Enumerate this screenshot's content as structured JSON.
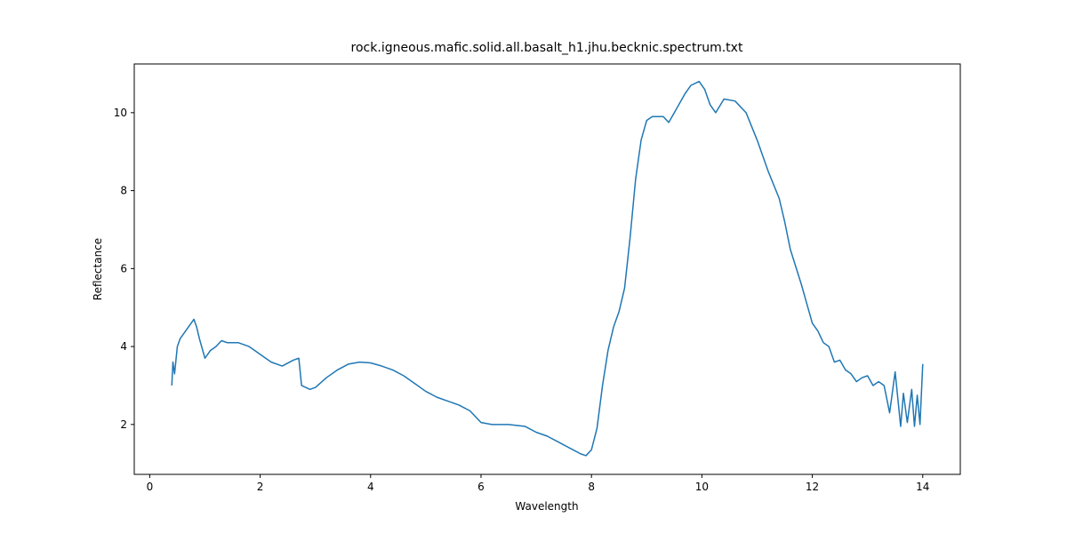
{
  "chart_data": {
    "type": "line",
    "title": "rock.igneous.mafic.solid.all.basalt_h1.jhu.becknic.spectrum.txt",
    "x_label": "Wavelength",
    "y_label": "Reflectance",
    "x": [
      0.4,
      0.42,
      0.45,
      0.5,
      0.55,
      0.6,
      0.7,
      0.75,
      0.8,
      0.85,
      0.9,
      1.0,
      1.1,
      1.2,
      1.3,
      1.4,
      1.6,
      1.8,
      2.0,
      2.2,
      2.4,
      2.6,
      2.7,
      2.75,
      2.9,
      3.0,
      3.2,
      3.4,
      3.6,
      3.8,
      4.0,
      4.2,
      4.4,
      4.6,
      4.8,
      5.0,
      5.2,
      5.4,
      5.6,
      5.8,
      6.0,
      6.2,
      6.5,
      6.8,
      7.0,
      7.2,
      7.4,
      7.6,
      7.8,
      7.9,
      8.0,
      8.1,
      8.2,
      8.3,
      8.4,
      8.5,
      8.6,
      8.7,
      8.8,
      8.9,
      9.0,
      9.1,
      9.3,
      9.4,
      9.5,
      9.6,
      9.7,
      9.8,
      9.95,
      10.05,
      10.15,
      10.25,
      10.4,
      10.6,
      10.8,
      11.0,
      11.2,
      11.4,
      11.5,
      11.6,
      11.8,
      11.9,
      12.0,
      12.1,
      12.2,
      12.3,
      12.4,
      12.5,
      12.6,
      12.7,
      12.8,
      12.9,
      13.0,
      13.1,
      13.2,
      13.3,
      13.4,
      13.5,
      13.6,
      13.65,
      13.72,
      13.8,
      13.85,
      13.9,
      13.95,
      14.0
    ],
    "series": [
      {
        "color": "#1f77b4",
        "values": [
          3.0,
          3.6,
          3.3,
          4.0,
          4.2,
          4.3,
          4.5,
          4.6,
          4.7,
          4.5,
          4.2,
          3.7,
          3.9,
          4.0,
          4.15,
          4.1,
          4.1,
          4.0,
          3.8,
          3.6,
          3.5,
          3.65,
          3.7,
          3.0,
          2.9,
          2.95,
          3.2,
          3.4,
          3.55,
          3.6,
          3.58,
          3.5,
          3.4,
          3.25,
          3.05,
          2.85,
          2.7,
          2.6,
          2.5,
          2.35,
          2.05,
          2.0,
          2.0,
          1.95,
          1.8,
          1.7,
          1.55,
          1.4,
          1.25,
          1.2,
          1.35,
          1.9,
          3.0,
          3.9,
          4.5,
          4.9,
          5.5,
          6.8,
          8.3,
          9.3,
          9.8,
          9.9,
          9.9,
          9.75,
          10.0,
          10.25,
          10.5,
          10.7,
          10.8,
          10.6,
          10.2,
          10.0,
          10.35,
          10.3,
          10.0,
          9.3,
          8.5,
          7.8,
          7.2,
          6.5,
          5.6,
          5.1,
          4.6,
          4.4,
          4.1,
          4.0,
          3.6,
          3.65,
          3.4,
          3.3,
          3.1,
          3.2,
          3.25,
          3.0,
          3.1,
          3.0,
          2.3,
          3.35,
          1.95,
          2.8,
          2.05,
          2.9,
          1.95,
          2.75,
          2.0,
          3.55
        ]
      }
    ],
    "xlim": [
      -0.28,
      14.68
    ],
    "ylim": [
      0.72,
      11.25
    ],
    "xticks": [
      0,
      2,
      4,
      6,
      8,
      10,
      12,
      14
    ],
    "yticks": [
      2,
      4,
      6,
      8,
      10
    ]
  }
}
